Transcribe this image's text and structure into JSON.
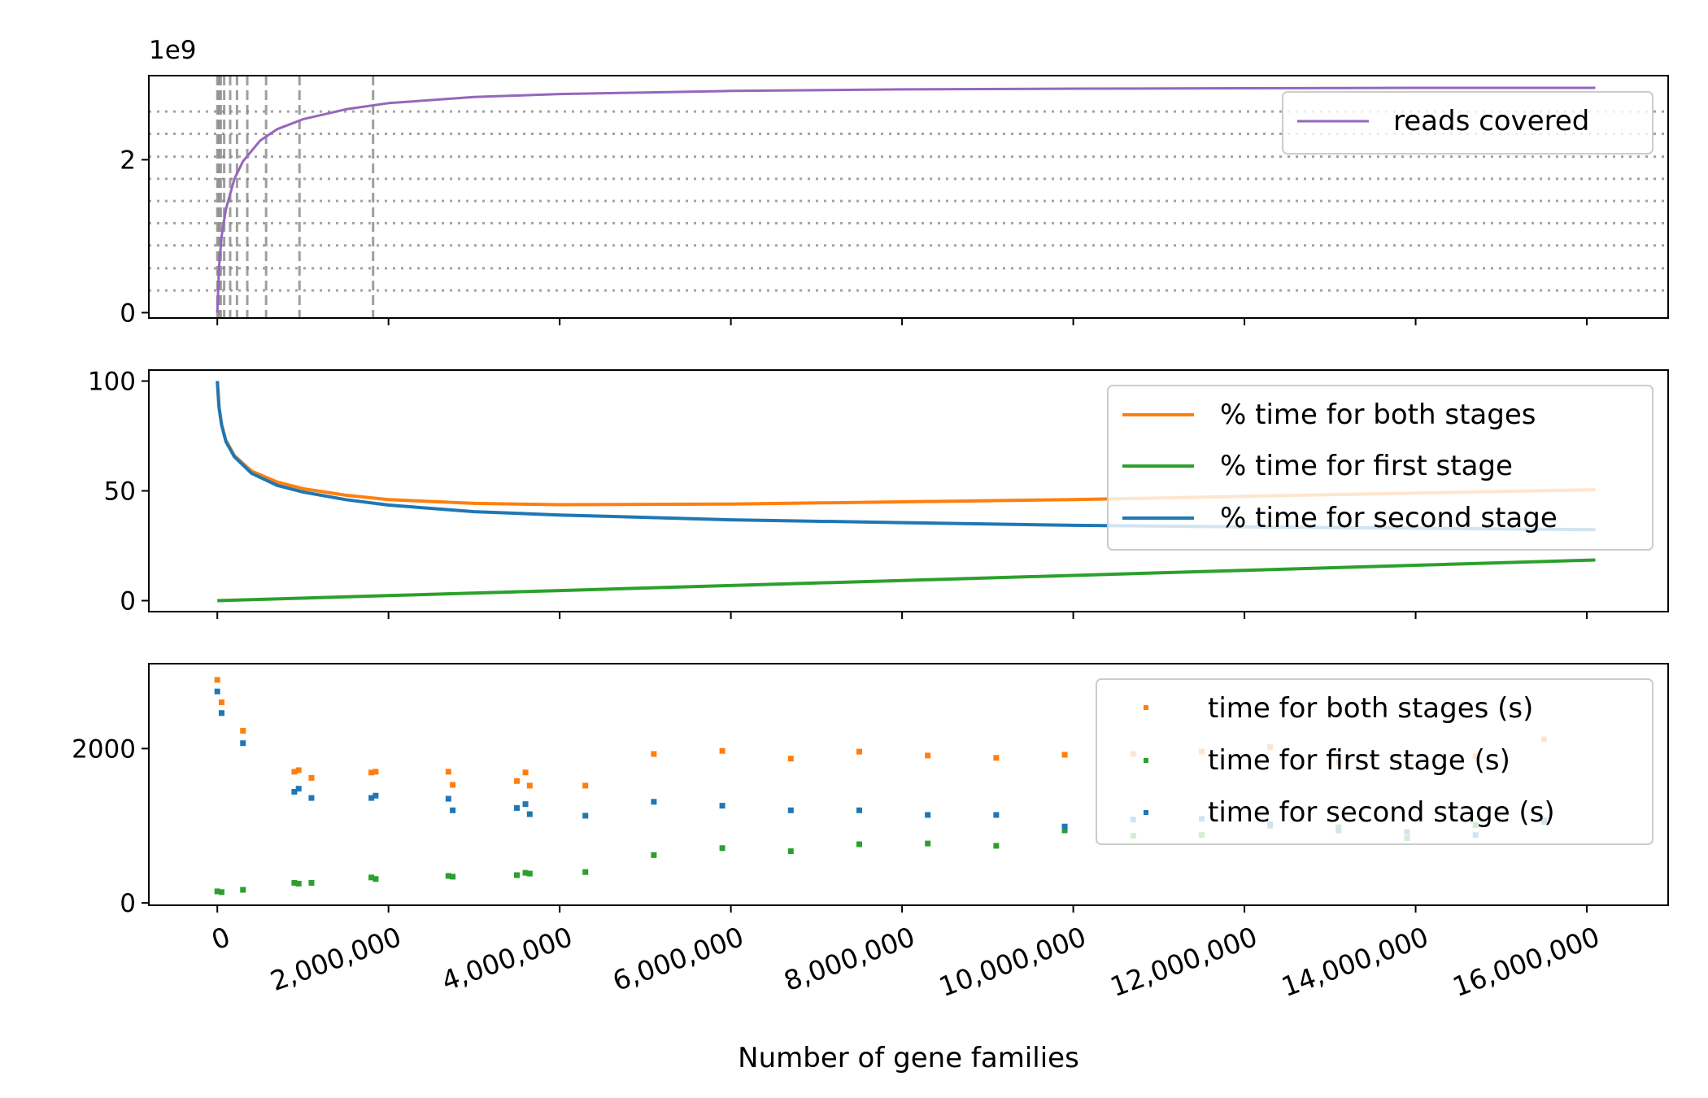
{
  "figure": {
    "xlabel": "Number of gene families",
    "xtick_labels": [
      "0",
      "2,000,000",
      "4,000,000",
      "6,000,000",
      "8,000,000",
      "10,000,000",
      "12,000,000",
      "14,000,000",
      "16,000,000"
    ]
  },
  "chart_data": [
    {
      "type": "line",
      "panel": "top",
      "offset_label": "1e9",
      "ylim": [
        -0.07,
        3.1
      ],
      "y_scale_exponent": 9,
      "yticks": [
        0,
        2
      ],
      "ytick_labels": [
        "0",
        "2"
      ],
      "xlim": [
        -800000,
        16950000
      ],
      "grid": "horizontal dotted lines at quantiles; vertical dashed lines at selected gene-family counts",
      "legend_position": "upper right",
      "series": [
        {
          "name": "reads covered",
          "color": "#9467bd",
          "x": [
            0,
            20000,
            50000,
            100000,
            200000,
            300000,
            500000,
            700000,
            1000000,
            1500000,
            2000000,
            3000000,
            4000000,
            5000000,
            6000000,
            8000000,
            10000000,
            12000000,
            14000000,
            16100000
          ],
          "y": [
            0,
            0.6,
            1.0,
            1.35,
            1.75,
            1.98,
            2.25,
            2.4,
            2.53,
            2.66,
            2.74,
            2.82,
            2.86,
            2.88,
            2.9,
            2.92,
            2.93,
            2.935,
            2.94,
            2.94
          ]
        }
      ],
      "hlines_dotted": [
        0.29,
        0.58,
        0.88,
        1.17,
        1.46,
        1.75,
        2.04,
        2.34,
        2.63
      ],
      "vlines_dashed": [
        0,
        20000,
        40000,
        80000,
        150000,
        230000,
        350000,
        570000,
        960000,
        1820000
      ]
    },
    {
      "type": "line",
      "panel": "middle",
      "ylim": [
        -5,
        105
      ],
      "yticks": [
        0,
        50,
        100
      ],
      "ytick_labels": [
        "0",
        "50",
        "100"
      ],
      "xlim": [
        -800000,
        16950000
      ],
      "legend_position": "upper right",
      "series": [
        {
          "name": "% time for both stages",
          "color": "#ff7f0e",
          "x": [
            0,
            20000,
            50000,
            100000,
            200000,
            400000,
            700000,
            1000000,
            1500000,
            2000000,
            3000000,
            4000000,
            6000000,
            8000000,
            10000000,
            12000000,
            14000000,
            16100000
          ],
          "y": [
            100,
            88,
            80,
            73,
            66,
            59,
            54,
            51,
            48,
            46,
            44.3,
            43.7,
            44,
            45,
            46,
            47.5,
            49,
            50.5
          ]
        },
        {
          "name": "% time for first stage",
          "color": "#2ca02c",
          "x": [
            0,
            2000000,
            4000000,
            6000000,
            8000000,
            10000000,
            12000000,
            14000000,
            16100000
          ],
          "y": [
            0,
            2.3,
            4.6,
            6.9,
            9.2,
            11.5,
            13.8,
            16.1,
            18.5
          ]
        },
        {
          "name": "% time for second stage",
          "color": "#1f77b4",
          "x": [
            0,
            20000,
            50000,
            100000,
            200000,
            400000,
            700000,
            1000000,
            1500000,
            2000000,
            3000000,
            4000000,
            6000000,
            8000000,
            10000000,
            12000000,
            14000000,
            16100000
          ],
          "y": [
            100,
            88,
            80,
            72.5,
            65.5,
            58,
            52.5,
            49.5,
            46,
            43.5,
            40.5,
            39,
            36.8,
            35.5,
            34.3,
            33.6,
            33,
            32.3
          ]
        }
      ]
    },
    {
      "type": "scatter",
      "panel": "bottom",
      "ylim": [
        -30,
        3100
      ],
      "yticks": [
        0,
        2000
      ],
      "ytick_labels": [
        "0",
        "2000"
      ],
      "xlim": [
        -800000,
        16950000
      ],
      "legend_position": "upper right",
      "x": [
        0,
        50000,
        300000,
        900000,
        950000,
        1100000,
        1800000,
        1850000,
        2700000,
        2750000,
        3500000,
        3600000,
        3650000,
        4300000,
        5100000,
        5900000,
        6700000,
        7500000,
        8300000,
        9100000,
        9900000,
        10700000,
        11500000,
        12300000,
        13100000,
        13900000,
        14700000,
        15500000
      ],
      "series": [
        {
          "name": "time for both stages (s)",
          "color": "#ff7f0e",
          "values": [
            2890,
            2600,
            2230,
            1700,
            1720,
            1620,
            1690,
            1700,
            1700,
            1530,
            1580,
            1690,
            1520,
            1520,
            1930,
            1970,
            1870,
            1960,
            1910,
            1880,
            1920,
            1930,
            1960,
            2020,
            1820,
            1820,
            1900,
            2120
          ]
        },
        {
          "name": "time for first stage (s)",
          "color": "#2ca02c",
          "values": [
            150,
            140,
            170,
            260,
            250,
            260,
            330,
            310,
            350,
            340,
            360,
            390,
            380,
            400,
            620,
            710,
            670,
            760,
            770,
            740,
            940,
            870,
            880,
            1000,
            980,
            840,
            1010,
            1050
          ]
        },
        {
          "name": "time for second stage (s)",
          "color": "#1f77b4",
          "values": [
            2740,
            2460,
            2070,
            1440,
            1480,
            1360,
            1360,
            1390,
            1350,
            1200,
            1230,
            1280,
            1150,
            1130,
            1310,
            1260,
            1200,
            1200,
            1140,
            1140,
            990,
            1080,
            1090,
            1020,
            940,
            920,
            880,
            1070
          ]
        }
      ]
    }
  ]
}
